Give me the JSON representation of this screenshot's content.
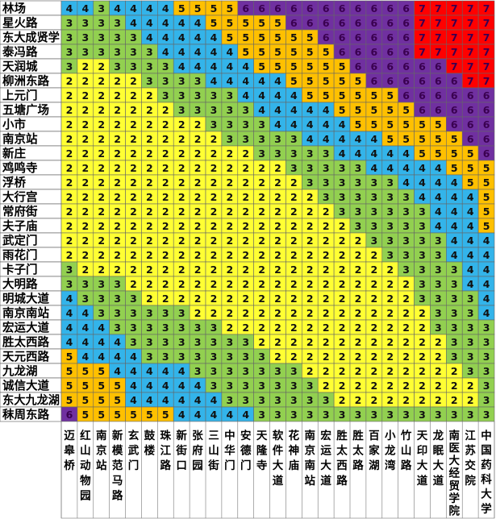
{
  "chart_data": {
    "type": "heatmap",
    "title": "",
    "xlabel": "",
    "ylabel": "",
    "rows": [
      "林场",
      "星火路",
      "东大成贤学院",
      "泰冯路",
      "天润城",
      "柳洲东路",
      "上元门",
      "五塘广场",
      "小市",
      "南京站",
      "新庄",
      "鸡鸣寺",
      "浮桥",
      "大行宫",
      "常府街",
      "夫子庙",
      "武定门",
      "雨花门",
      "卡子门",
      "大明路",
      "明城大道",
      "南京南站",
      "宏运大道",
      "胜太西路",
      "天元西路",
      "九龙湖",
      "诚信大道",
      "东大九龙湖",
      "秣周东路"
    ],
    "row_labels_shown": [
      "林场",
      "星火路",
      "东大成贤学",
      "泰冯路",
      "天润城",
      "柳洲东路",
      "上元门",
      "五塘广场",
      "小市",
      "南京站",
      "新庄",
      "鸡鸣寺",
      "浮桥",
      "大行宫",
      "常府街",
      "夫子庙",
      "武定门",
      "雨花门",
      "卡子门",
      "大明路",
      "明城大道",
      "南京南站",
      "宏运大道",
      "胜太西路",
      "天元西路",
      "九龙湖",
      "诚信大道",
      "东大九龙湖",
      "秣周东路"
    ],
    "columns": [
      "迈皋桥",
      "红山动物园",
      "南京站",
      "新模范马路",
      "玄武门",
      "鼓楼",
      "珠江路",
      "新街口",
      "张府园",
      "三山街",
      "中华门",
      "安德门",
      "天隆寺",
      "软件大道",
      "花神庙",
      "南京南站",
      "宏运大道",
      "胜太西路",
      "胜太路",
      "百家湖",
      "小龙湾",
      "竹山路",
      "天印大道",
      "龙眠大道",
      "南医大经贸学院",
      "江苏交院",
      "中国药科大学"
    ],
    "column_labels_shown": [
      "迈皋桥",
      "红山动物园",
      "南京站",
      "新模范马路",
      "玄武门",
      "鼓楼",
      "珠江路",
      "新街口",
      "张府园",
      "三山街",
      "中华门",
      "安德门",
      "天隆寺",
      "软件大道",
      "花神庙",
      "南京南站",
      "宏运大道",
      "胜太西路",
      "胜太路",
      "百家湖",
      "小龙湾",
      "竹山路",
      "天印大道",
      "龙眠大道",
      "南医大经贸学院",
      "江苏交院",
      "中国药科大学"
    ],
    "values": [
      [
        4,
        4,
        3,
        4,
        4,
        4,
        4,
        5,
        5,
        5,
        5,
        6,
        6,
        6,
        6,
        6,
        6,
        6,
        6,
        6,
        6,
        6,
        7,
        7,
        7,
        7,
        7
      ],
      [
        3,
        3,
        3,
        3,
        4,
        4,
        4,
        4,
        4,
        5,
        5,
        5,
        5,
        5,
        6,
        6,
        6,
        6,
        6,
        6,
        6,
        6,
        7,
        7,
        7,
        7,
        7
      ],
      [
        3,
        3,
        3,
        3,
        3,
        4,
        4,
        4,
        4,
        4,
        5,
        5,
        5,
        5,
        5,
        5,
        6,
        6,
        6,
        6,
        6,
        6,
        7,
        7,
        7,
        7,
        7
      ],
      [
        3,
        3,
        3,
        3,
        3,
        3,
        4,
        4,
        4,
        4,
        4,
        5,
        5,
        5,
        5,
        5,
        5,
        6,
        6,
        6,
        6,
        6,
        7,
        7,
        7,
        7,
        7
      ],
      [
        3,
        2,
        2,
        3,
        3,
        3,
        3,
        4,
        4,
        4,
        4,
        4,
        5,
        5,
        5,
        5,
        5,
        5,
        6,
        6,
        6,
        6,
        6,
        6,
        7,
        7,
        7
      ],
      [
        2,
        2,
        2,
        2,
        2,
        3,
        3,
        3,
        3,
        4,
        4,
        4,
        4,
        4,
        5,
        5,
        5,
        5,
        5,
        6,
        6,
        6,
        6,
        6,
        6,
        7,
        7
      ],
      [
        2,
        2,
        2,
        2,
        2,
        2,
        3,
        3,
        3,
        3,
        3,
        4,
        4,
        4,
        4,
        5,
        5,
        5,
        5,
        5,
        5,
        6,
        6,
        6,
        6,
        6,
        6
      ],
      [
        2,
        2,
        2,
        2,
        2,
        2,
        2,
        3,
        3,
        3,
        3,
        3,
        4,
        4,
        4,
        4,
        4,
        5,
        5,
        5,
        5,
        5,
        6,
        6,
        6,
        6,
        6
      ],
      [
        2,
        2,
        2,
        2,
        2,
        2,
        2,
        2,
        2,
        3,
        3,
        3,
        3,
        4,
        4,
        4,
        4,
        4,
        5,
        5,
        5,
        5,
        5,
        5,
        6,
        6,
        6
      ],
      [
        2,
        2,
        2,
        2,
        2,
        2,
        2,
        2,
        2,
        2,
        3,
        3,
        3,
        3,
        3,
        4,
        4,
        4,
        4,
        4,
        5,
        5,
        5,
        5,
        5,
        6,
        6
      ],
      [
        2,
        2,
        2,
        2,
        2,
        2,
        2,
        2,
        2,
        2,
        2,
        2,
        3,
        3,
        3,
        3,
        3,
        4,
        4,
        4,
        4,
        4,
        5,
        5,
        5,
        5,
        6
      ],
      [
        2,
        2,
        2,
        2,
        2,
        2,
        2,
        2,
        2,
        2,
        2,
        2,
        2,
        2,
        3,
        3,
        3,
        3,
        3,
        4,
        4,
        4,
        4,
        4,
        5,
        5,
        5
      ],
      [
        2,
        2,
        2,
        2,
        2,
        2,
        2,
        2,
        2,
        2,
        2,
        2,
        2,
        2,
        2,
        3,
        3,
        3,
        3,
        3,
        3,
        4,
        4,
        4,
        4,
        5,
        5
      ],
      [
        2,
        2,
        2,
        2,
        2,
        2,
        2,
        2,
        2,
        2,
        2,
        2,
        2,
        2,
        2,
        2,
        3,
        3,
        3,
        3,
        3,
        3,
        4,
        4,
        4,
        4,
        5
      ],
      [
        2,
        2,
        2,
        2,
        2,
        2,
        2,
        2,
        2,
        2,
        2,
        2,
        2,
        2,
        2,
        2,
        2,
        3,
        3,
        3,
        3,
        3,
        3,
        4,
        4,
        4,
        5
      ],
      [
        2,
        2,
        2,
        2,
        2,
        2,
        2,
        2,
        2,
        2,
        2,
        2,
        2,
        2,
        2,
        2,
        2,
        2,
        3,
        3,
        3,
        3,
        3,
        4,
        4,
        4,
        5
      ],
      [
        2,
        2,
        2,
        2,
        2,
        2,
        2,
        2,
        2,
        2,
        2,
        2,
        2,
        2,
        2,
        2,
        2,
        2,
        2,
        3,
        3,
        3,
        3,
        3,
        4,
        4,
        4
      ],
      [
        2,
        2,
        2,
        2,
        2,
        2,
        2,
        2,
        2,
        2,
        2,
        2,
        2,
        2,
        2,
        2,
        2,
        2,
        2,
        2,
        3,
        3,
        3,
        3,
        4,
        4,
        4
      ],
      [
        3,
        2,
        2,
        2,
        2,
        2,
        2,
        2,
        2,
        2,
        2,
        2,
        2,
        2,
        2,
        2,
        2,
        2,
        2,
        2,
        2,
        3,
        3,
        3,
        3,
        4,
        4
      ],
      [
        3,
        3,
        3,
        3,
        2,
        2,
        2,
        2,
        2,
        2,
        2,
        2,
        2,
        2,
        2,
        2,
        2,
        2,
        2,
        2,
        2,
        2,
        3,
        3,
        3,
        4,
        4
      ],
      [
        4,
        3,
        3,
        3,
        3,
        2,
        2,
        2,
        2,
        2,
        2,
        2,
        2,
        2,
        2,
        2,
        2,
        2,
        2,
        2,
        2,
        2,
        3,
        3,
        3,
        3,
        4
      ],
      [
        4,
        4,
        3,
        3,
        3,
        3,
        3,
        3,
        2,
        2,
        2,
        2,
        2,
        2,
        2,
        2,
        2,
        2,
        2,
        2,
        2,
        2,
        2,
        3,
        3,
        3,
        4
      ],
      [
        4,
        4,
        4,
        3,
        3,
        3,
        3,
        3,
        3,
        3,
        2,
        2,
        2,
        2,
        2,
        2,
        2,
        2,
        2,
        2,
        2,
        2,
        2,
        3,
        3,
        3,
        3
      ],
      [
        4,
        4,
        4,
        4,
        3,
        3,
        3,
        3,
        3,
        3,
        3,
        3,
        2,
        2,
        2,
        2,
        2,
        2,
        2,
        2,
        2,
        2,
        2,
        2,
        3,
        3,
        3
      ],
      [
        5,
        4,
        4,
        4,
        4,
        3,
        3,
        3,
        3,
        3,
        3,
        3,
        3,
        2,
        2,
        2,
        2,
        2,
        2,
        2,
        2,
        2,
        2,
        2,
        3,
        3,
        3
      ],
      [
        5,
        5,
        5,
        4,
        4,
        4,
        4,
        4,
        3,
        3,
        3,
        3,
        3,
        3,
        3,
        2,
        2,
        2,
        2,
        2,
        2,
        2,
        2,
        2,
        2,
        3,
        3
      ],
      [
        5,
        5,
        5,
        5,
        4,
        4,
        4,
        4,
        4,
        3,
        3,
        3,
        3,
        3,
        3,
        3,
        2,
        2,
        2,
        2,
        2,
        2,
        2,
        2,
        2,
        2,
        3
      ],
      [
        5,
        5,
        5,
        5,
        4,
        4,
        4,
        4,
        4,
        4,
        3,
        3,
        3,
        3,
        3,
        3,
        3,
        2,
        2,
        2,
        2,
        2,
        2,
        2,
        2,
        2,
        3
      ],
      [
        6,
        5,
        5,
        5,
        5,
        5,
        5,
        4,
        4,
        4,
        4,
        4,
        3,
        3,
        3,
        3,
        3,
        3,
        3,
        3,
        3,
        3,
        3,
        3,
        3,
        3,
        3
      ]
    ],
    "color_scale": {
      "2": "#ffff33",
      "3": "#92d050",
      "4": "#33b4ea",
      "5": "#ffc000",
      "6": "#7030a0",
      "7": "#ff0000"
    }
  }
}
